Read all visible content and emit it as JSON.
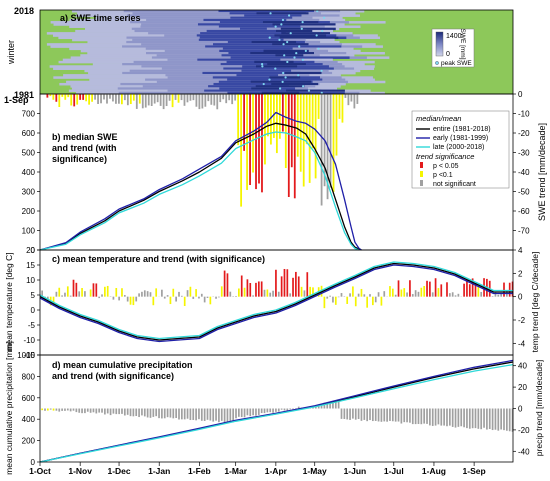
{
  "colors": {
    "grass": "#8dc85a",
    "snow_light": "#b6bbdc",
    "snow_mid": "#8f96c9",
    "snow_dark": "#3848a3",
    "snow_deep": "#203080",
    "sig005": "#e31a1c",
    "sig01": "#f5f500",
    "nonsig": "#a0a0a0",
    "entire": "#000000",
    "early": "#1f1fa8",
    "late": "#2fd9d9",
    "peak": "#7fd7f0"
  },
  "axes": {
    "x_ticks": [
      "1-Oct",
      "1-Nov",
      "1-Dec",
      "1-Jan",
      "1-Feb",
      "1-Mar",
      "1-Apr",
      "1-May",
      "1-Jun",
      "1-Jul",
      "1-Aug",
      "1-Sep"
    ],
    "x_day": [
      0,
      31,
      61,
      92,
      123,
      151,
      182,
      212,
      243,
      273,
      304,
      335
    ],
    "x_max_day": 365
  },
  "chart_data": [
    {
      "type": "heatmap",
      "title": "a) SWE time series",
      "ylabel": "winter",
      "y_top_label": "2018",
      "y_bottom_label": "1981",
      "year_range": [
        1981,
        2018
      ],
      "colorbar": {
        "label": "SWE [mm]",
        "tick_top": "1400",
        "tick_bottom": "0",
        "legend_peak": "peak SWE"
      },
      "rows": 38,
      "snow_start_day": 5,
      "snow_end_day": 255
    },
    {
      "type": "line",
      "title_lines": [
        "b) median SWE",
        "and trend (with",
        "significance)"
      ],
      "top_axis_label": "1-Sep",
      "ylabel": "",
      "y2label": "SWE trend [mm/decade]",
      "ylim": [
        0,
        800
      ],
      "y_ticks": [
        0,
        100,
        200,
        300,
        400,
        500,
        600,
        700
      ],
      "y2lim": [
        -80,
        0
      ],
      "y2_ticks": [
        0,
        -10,
        -20,
        -30,
        -40,
        -50,
        -60,
        -70
      ],
      "legend": {
        "header": "median/mean",
        "trend_header": "trend significance",
        "entries": [
          {
            "key": "entire",
            "label": "entire (1981-2018)"
          },
          {
            "key": "early",
            "label": "early (1981-1999)"
          },
          {
            "key": "late",
            "label": "late (2000-2018)"
          }
        ],
        "sig_entries": [
          {
            "key": "sig005",
            "label": "p < 0.05"
          },
          {
            "key": "sig01",
            "label": "p <0.1"
          },
          {
            "key": "nonsig",
            "label": "not significant"
          }
        ]
      },
      "series": [
        {
          "name": "entire (1981-2018)",
          "key": "entire",
          "x": [
            0,
            20,
            31,
            50,
            61,
            80,
            92,
            110,
            123,
            140,
            151,
            165,
            175,
            182,
            190,
            198,
            205,
            212,
            220,
            228,
            235,
            240,
            243,
            246,
            248
          ],
          "y": [
            0,
            35,
            85,
            150,
            200,
            255,
            300,
            355,
            400,
            470,
            550,
            595,
            635,
            650,
            640,
            625,
            595,
            520,
            420,
            260,
            120,
            40,
            15,
            5,
            0
          ]
        },
        {
          "name": "early (1981-1999)",
          "key": "early",
          "x": [
            0,
            20,
            31,
            50,
            61,
            80,
            92,
            110,
            123,
            140,
            151,
            165,
            175,
            182,
            190,
            198,
            205,
            212,
            220,
            228,
            235,
            240,
            243,
            246,
            248
          ],
          "y": [
            0,
            38,
            92,
            160,
            210,
            262,
            310,
            365,
            415,
            480,
            560,
            610,
            655,
            705,
            680,
            660,
            650,
            620,
            560,
            440,
            260,
            120,
            40,
            10,
            0
          ]
        },
        {
          "name": "late (2000-2018)",
          "key": "late",
          "x": [
            0,
            20,
            31,
            50,
            61,
            80,
            92,
            110,
            123,
            140,
            151,
            165,
            175,
            182,
            190,
            198,
            205,
            212,
            220,
            228,
            235,
            240,
            243,
            246
          ],
          "y": [
            0,
            30,
            78,
            140,
            190,
            240,
            285,
            335,
            380,
            445,
            520,
            565,
            595,
            605,
            600,
            580,
            560,
            500,
            380,
            220,
            90,
            30,
            8,
            0
          ]
        }
      ]
    },
    {
      "type": "line",
      "title": "c) mean temperature and trend (with significance)",
      "ylabel": "mean temperature [deg C]",
      "y2label": "temp trend [deg C/decade]",
      "ylim": [
        -15,
        20
      ],
      "y_ticks": [
        -15,
        -10,
        -5,
        0,
        5,
        10,
        15,
        20
      ],
      "y2lim": [
        -5,
        4
      ],
      "y2_ticks": [
        -4,
        -2,
        0,
        2,
        4
      ],
      "series": [
        {
          "name": "entire (1981-2018)",
          "key": "entire",
          "x": [
            0,
            15,
            31,
            45,
            61,
            75,
            92,
            107,
            123,
            137,
            151,
            165,
            182,
            197,
            212,
            227,
            243,
            258,
            273,
            288,
            304,
            320,
            335,
            350,
            365
          ],
          "y": [
            4.5,
            1,
            -2,
            -4,
            -7,
            -9,
            -10,
            -9.5,
            -9,
            -6,
            -4,
            -2,
            -0.5,
            2,
            5,
            8,
            11,
            14,
            15.5,
            15,
            14,
            12,
            9,
            6,
            6
          ]
        },
        {
          "name": "early (1981-1999)",
          "key": "early",
          "x": [
            0,
            15,
            31,
            45,
            61,
            75,
            92,
            107,
            123,
            137,
            151,
            165,
            182,
            197,
            212,
            227,
            243,
            258,
            273,
            288,
            304,
            320,
            335,
            350,
            365
          ],
          "y": [
            4,
            0.5,
            -2.5,
            -4.5,
            -7.5,
            -9.5,
            -10.5,
            -10,
            -9.5,
            -6.5,
            -4.5,
            -2.5,
            -1,
            1.5,
            4.5,
            7.5,
            10.5,
            13.5,
            15,
            14.5,
            13.5,
            11.5,
            8.5,
            5.5,
            5.5
          ]
        },
        {
          "name": "late (2000-2018)",
          "key": "late",
          "x": [
            0,
            15,
            31,
            45,
            61,
            75,
            92,
            107,
            123,
            137,
            151,
            165,
            182,
            197,
            212,
            227,
            243,
            258,
            273,
            288,
            304,
            320,
            335,
            350,
            365
          ],
          "y": [
            5,
            1.5,
            -1.5,
            -3.5,
            -6.5,
            -8.5,
            -9.5,
            -9,
            -8.5,
            -5.5,
            -3.5,
            -1.5,
            0,
            2.5,
            5.5,
            8.5,
            11.5,
            14.5,
            16,
            15.5,
            14.5,
            12.5,
            9.5,
            6.5,
            6.5
          ]
        }
      ]
    },
    {
      "type": "line",
      "title_lines": [
        "d) mean cumulative precipitation",
        "and trend (with significance)"
      ],
      "ylabel": "mean cumulative precipitation [mm]",
      "y2label": "precip trend [mm/decade]",
      "ylim": [
        0,
        1000
      ],
      "y_ticks": [
        0,
        200,
        400,
        600,
        800,
        1000
      ],
      "y2lim": [
        -50,
        50
      ],
      "y2_ticks": [
        -40,
        -20,
        0,
        20,
        40
      ],
      "series": [
        {
          "name": "entire (1981-2018)",
          "key": "entire",
          "x": [
            0,
            31,
            61,
            92,
            123,
            151,
            182,
            212,
            243,
            273,
            304,
            335,
            365
          ],
          "y": [
            0,
            80,
            155,
            230,
            310,
            385,
            450,
            520,
            610,
            700,
            790,
            870,
            935
          ]
        },
        {
          "name": "early (1981-1999)",
          "key": "early",
          "x": [
            0,
            31,
            61,
            92,
            123,
            151,
            182,
            212,
            243,
            273,
            304,
            335,
            365
          ],
          "y": [
            0,
            82,
            158,
            235,
            315,
            390,
            455,
            525,
            620,
            710,
            800,
            885,
            950
          ]
        },
        {
          "name": "late (2000-2018)",
          "key": "late",
          "x": [
            0,
            31,
            61,
            92,
            123,
            151,
            182,
            212,
            243,
            273,
            304,
            335,
            365
          ],
          "y": [
            0,
            78,
            150,
            225,
            305,
            380,
            448,
            515,
            600,
            685,
            770,
            850,
            910
          ]
        }
      ]
    }
  ]
}
